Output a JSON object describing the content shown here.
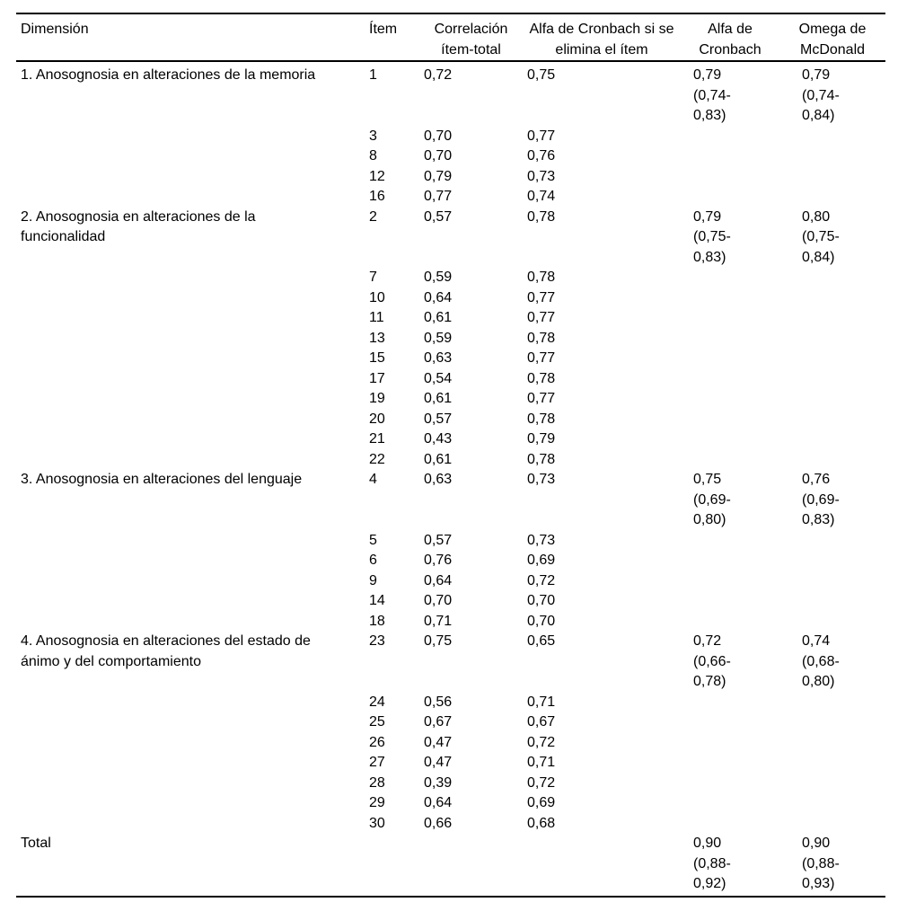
{
  "colors": {
    "background": "#ffffff",
    "text": "#000000",
    "rule": "#000000"
  },
  "table": {
    "headers": {
      "dimension": "Dimensión",
      "item": "Ítem",
      "corr": "Correlación\nítem-total",
      "drop": "Alfa de Cronbach si se\nelimina el ítem",
      "alfa": "Alfa de\nCronbach",
      "omega": "Omega de\nMcDonald"
    },
    "rows": [
      {
        "dimension": "1. Anosognosia en alteraciones de la memoria",
        "item": "1",
        "corr": "0,72",
        "drop": "0,75",
        "alfa": "0,79\n(0,74-\n0,83)",
        "omega": "0,79\n(0,74-\n0,84)"
      },
      {
        "item": "3",
        "corr": "0,70",
        "drop": "0,77"
      },
      {
        "item": "8",
        "corr": "0,70",
        "drop": "0,76"
      },
      {
        "item": "12",
        "corr": "0,79",
        "drop": "0,73"
      },
      {
        "item": "16",
        "corr": "0,77",
        "drop": "0,74"
      },
      {
        "dimension": "2. Anosognosia en alteraciones de la\nfuncionalidad",
        "item": "2",
        "corr": "0,57",
        "drop": "0,78",
        "alfa": "0,79\n(0,75-\n0,83)",
        "omega": "0,80\n(0,75-\n0,84)"
      },
      {
        "item": "7",
        "corr": "0,59",
        "drop": "0,78"
      },
      {
        "item": "10",
        "corr": "0,64",
        "drop": "0,77"
      },
      {
        "item": "11",
        "corr": "0,61",
        "drop": "0,77"
      },
      {
        "item": "13",
        "corr": "0,59",
        "drop": "0,78"
      },
      {
        "item": "15",
        "corr": "0,63",
        "drop": "0,77"
      },
      {
        "item": "17",
        "corr": "0,54",
        "drop": "0,78"
      },
      {
        "item": "19",
        "corr": "0,61",
        "drop": "0,77"
      },
      {
        "item": "20",
        "corr": "0,57",
        "drop": "0,78"
      },
      {
        "item": "21",
        "corr": "0,43",
        "drop": "0,79"
      },
      {
        "item": "22",
        "corr": "0,61",
        "drop": "0,78"
      },
      {
        "dimension": "3. Anosognosia en alteraciones del lenguaje",
        "item": "4",
        "corr": "0,63",
        "drop": "0,73",
        "alfa": "0,75\n(0,69-\n0,80)",
        "omega": "0,76\n(0,69-\n0,83)"
      },
      {
        "item": "5",
        "corr": "0,57",
        "drop": "0,73"
      },
      {
        "item": "6",
        "corr": "0,76",
        "drop": "0,69"
      },
      {
        "item": "9",
        "corr": "0,64",
        "drop": "0,72"
      },
      {
        "item": "14",
        "corr": "0,70",
        "drop": "0,70"
      },
      {
        "item": "18",
        "corr": "0,71",
        "drop": "0,70"
      },
      {
        "dimension": "4. Anosognosia en alteraciones del estado de\nánimo y del comportamiento",
        "item": "23",
        "corr": "0,75",
        "drop": "0,65",
        "alfa": "0,72\n(0,66-\n0,78)",
        "omega": "0,74\n(0,68-\n0,80)"
      },
      {
        "item": "24",
        "corr": "0,56",
        "drop": "0,71"
      },
      {
        "item": "25",
        "corr": "0,67",
        "drop": "0,67"
      },
      {
        "item": "26",
        "corr": "0,47",
        "drop": "0,72"
      },
      {
        "item": "27",
        "corr": "0,47",
        "drop": "0,71"
      },
      {
        "item": "28",
        "corr": "0,39",
        "drop": "0,72"
      },
      {
        "item": "29",
        "corr": "0,64",
        "drop": "0,69"
      },
      {
        "item": "30",
        "corr": "0,66",
        "drop": "0,68"
      },
      {
        "dimension": "Total",
        "alfa": "0,90\n(0,88-\n0,92)",
        "omega": "0,90\n(0,88-\n0,93)"
      }
    ]
  }
}
